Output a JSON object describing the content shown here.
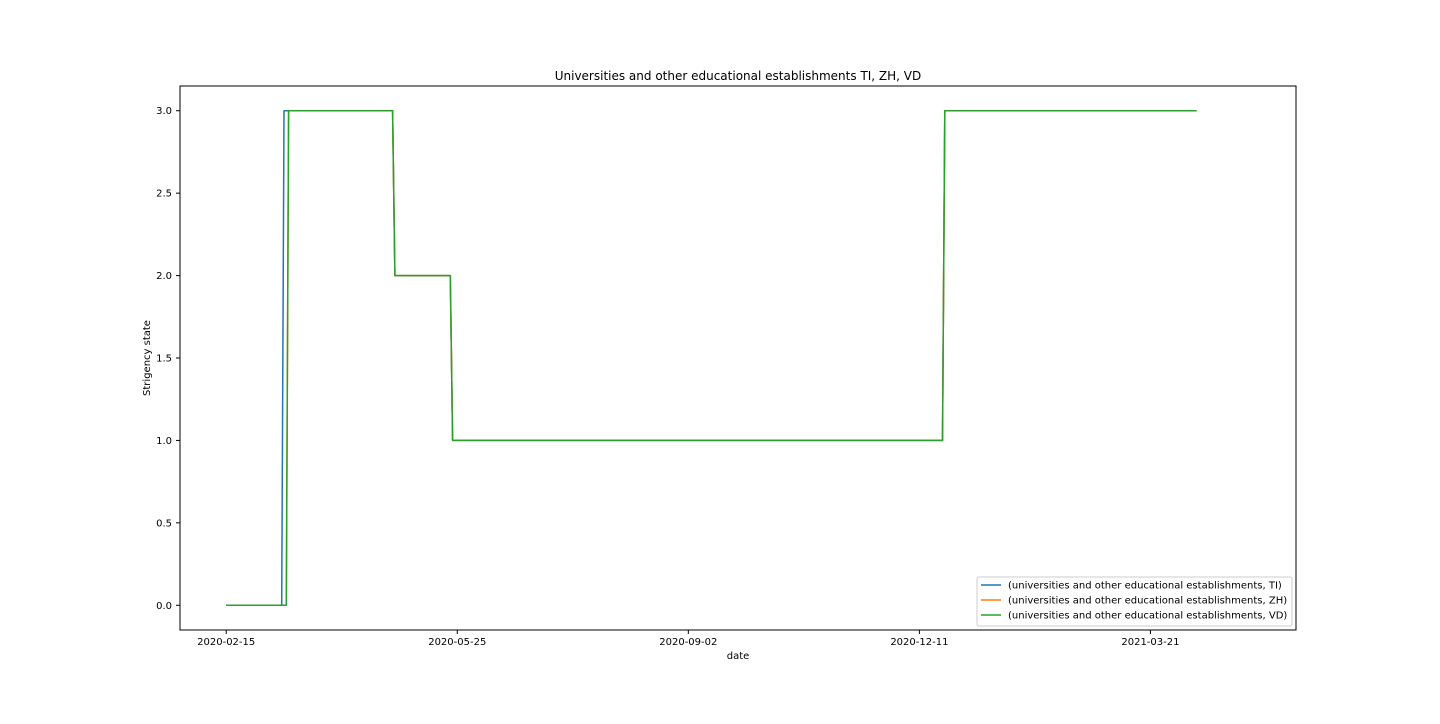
{
  "chart_data": {
    "type": "line",
    "title": "Universities and other educational establishments TI, ZH, VD",
    "xlabel": "date",
    "ylabel": "Strigency state",
    "x_ticks": [
      "2020-02-15",
      "2020-05-25",
      "2020-09-02",
      "2020-12-11",
      "2021-03-21"
    ],
    "y_ticks": [
      "0.0",
      "0.5",
      "1.0",
      "1.5",
      "2.0",
      "2.5",
      "3.0"
    ],
    "xlim": [
      "2020-01-26",
      "2021-05-23"
    ],
    "ylim": [
      -0.15,
      3.15
    ],
    "legend_position": "lower-right",
    "grid": false,
    "series": [
      {
        "name": "(universities and other educational establishments, TI)",
        "color": "#1f77b4",
        "points": [
          [
            "2020-02-15",
            0
          ],
          [
            "2020-03-10",
            0
          ],
          [
            "2020-03-11",
            3
          ],
          [
            "2020-04-27",
            3
          ],
          [
            "2020-04-28",
            2
          ],
          [
            "2020-05-22",
            2
          ],
          [
            "2020-05-23",
            1
          ],
          [
            "2020-12-21",
            1
          ],
          [
            "2020-12-22",
            3
          ],
          [
            "2021-04-10",
            3
          ]
        ]
      },
      {
        "name": "(universities and other educational establishments, ZH)",
        "color": "#ff7f0e",
        "points": [
          [
            "2020-02-15",
            0
          ],
          [
            "2020-03-12",
            0
          ],
          [
            "2020-03-13",
            3
          ],
          [
            "2020-04-27",
            3
          ],
          [
            "2020-04-28",
            2
          ],
          [
            "2020-05-22",
            2
          ],
          [
            "2020-05-23",
            1
          ],
          [
            "2020-12-21",
            1
          ],
          [
            "2020-12-22",
            3
          ],
          [
            "2021-04-10",
            3
          ]
        ]
      },
      {
        "name": "(universities and other educational establishments, VD)",
        "color": "#2ca02c",
        "points": [
          [
            "2020-02-15",
            0
          ],
          [
            "2020-03-12",
            0
          ],
          [
            "2020-03-13",
            3
          ],
          [
            "2020-04-27",
            3
          ],
          [
            "2020-04-28",
            2
          ],
          [
            "2020-05-22",
            2
          ],
          [
            "2020-05-23",
            1
          ],
          [
            "2020-12-21",
            1
          ],
          [
            "2020-12-22",
            3
          ],
          [
            "2021-04-10",
            3
          ]
        ]
      }
    ]
  }
}
